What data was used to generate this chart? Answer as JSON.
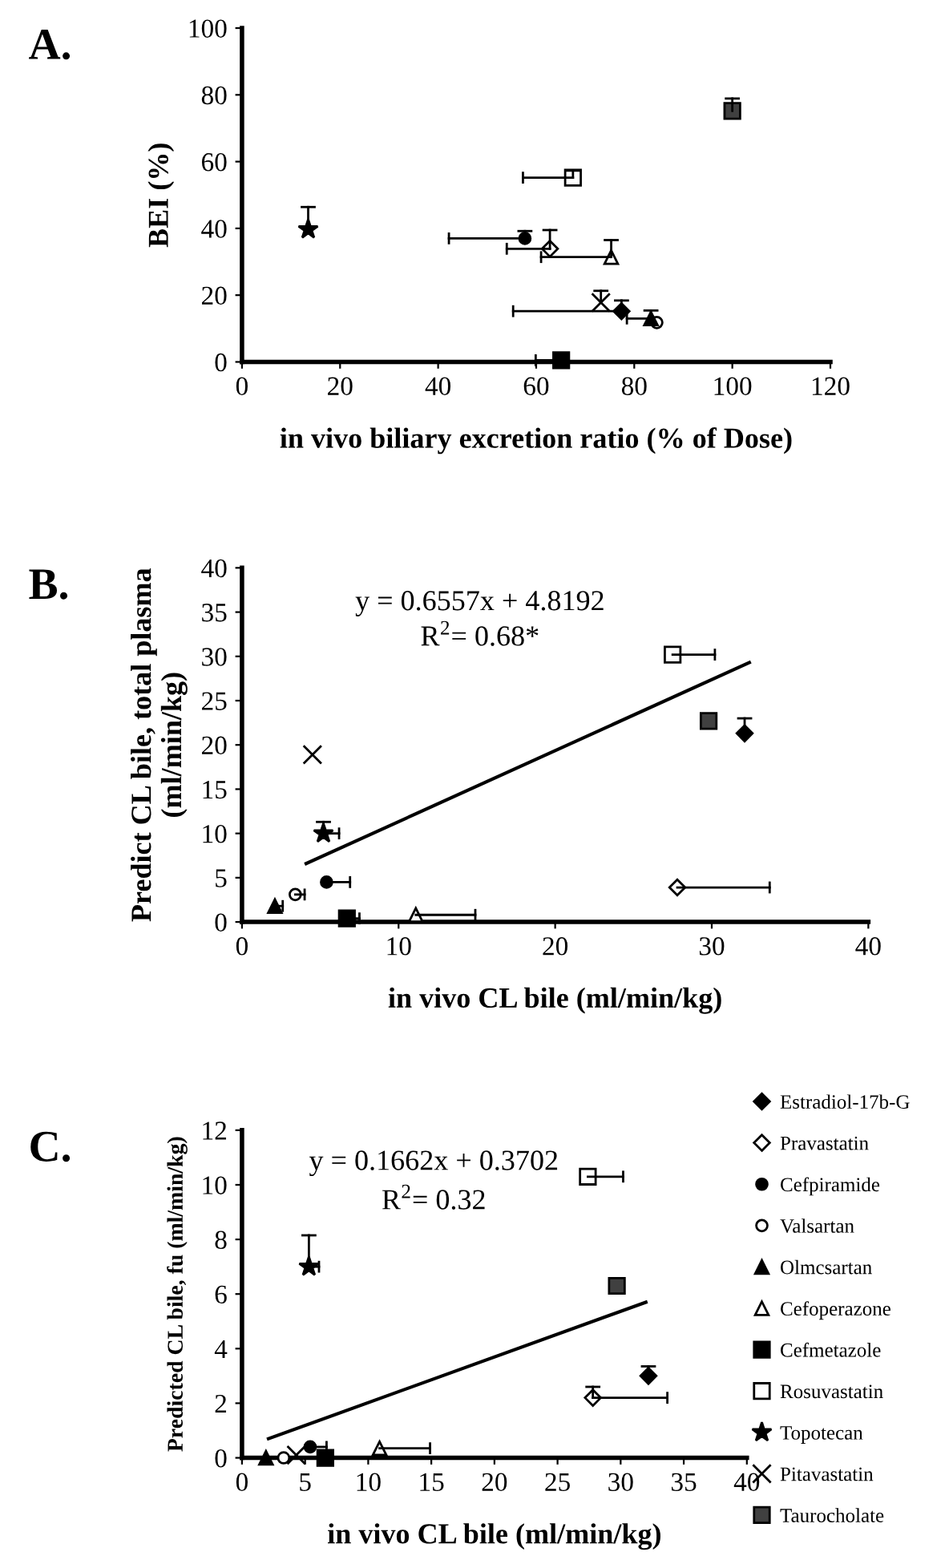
{
  "chart_data": [
    {
      "type": "scatter",
      "title": "A.",
      "xlabel": "in vivo biliary excretion ratio (% of Dose)",
      "ylabel": "BEI (%)",
      "xlim": [
        0,
        120
      ],
      "xticks": [
        0,
        20,
        40,
        60,
        80,
        100,
        120
      ],
      "ylim": [
        0,
        100
      ],
      "yticks": [
        0,
        20,
        40,
        60,
        80,
        100
      ],
      "grid": false,
      "legend": false,
      "series": [
        {
          "color": "#000000",
          "marker": "diamond",
          "x": [
            77.4
          ],
          "values": [
            15.2
          ],
          "xerrors": [
            [
              55.3,
              77.4
            ]
          ],
          "errors": [
            [
              15.2,
              18.4
            ]
          ]
        },
        {
          "color": "#ffffff",
          "marker": "diamond",
          "x": [
            62.8
          ],
          "values": [
            33.9
          ],
          "xerrors": [
            [
              54,
              62.8
            ]
          ],
          "errors": [
            [
              33.9,
              39.5
            ]
          ]
        },
        {
          "color": "#000000",
          "marker": "circle",
          "x": [
            57.7
          ],
          "values": [
            37
          ],
          "xerrors": [
            [
              42.2,
              57.7
            ]
          ],
          "errors": [
            [
              37,
              39.2
            ]
          ]
        },
        {
          "color": "#ffffff",
          "marker": "circle",
          "x": [
            84.6
          ],
          "values": [
            11.8
          ]
        },
        {
          "color": "#000000",
          "marker": "triangle",
          "x": [
            83.4
          ],
          "values": [
            13
          ],
          "xerrors": [
            [
              78.5,
              83.4
            ]
          ],
          "errors": [
            [
              13,
              15.4
            ]
          ]
        },
        {
          "color": "#ffffff",
          "marker": "triangle",
          "x": [
            75.3
          ],
          "values": [
            31.4
          ],
          "xerrors": [
            [
              61,
              75.3
            ]
          ],
          "errors": [
            [
              31.4,
              36.5
            ]
          ]
        },
        {
          "color": "#000000",
          "marker": "square",
          "x": [
            65.1
          ],
          "values": [
            0.5
          ],
          "xerrors": [
            [
              59.9,
              65.1
            ]
          ]
        },
        {
          "color": "#ffffff",
          "marker": "square",
          "x": [
            67.5
          ],
          "values": [
            55.2
          ],
          "xerrors": [
            [
              57.3,
              67.5
            ]
          ],
          "errors": [
            [
              55.2,
              57.3
            ]
          ]
        },
        {
          "color": "#000000",
          "marker": "star",
          "x": [
            13.5
          ],
          "values": [
            39.7
          ],
          "errors": [
            [
              39.7,
              46.4
            ]
          ]
        },
        {
          "color": "#000000",
          "marker": "cross",
          "x": [
            73.2
          ],
          "values": [
            17.8
          ],
          "errors": [
            [
              17.8,
              21.3
            ]
          ]
        },
        {
          "color": "#404040",
          "marker": "square",
          "x": [
            100
          ],
          "values": [
            75.2
          ],
          "errors": [
            [
              75.2,
              78.9
            ]
          ]
        }
      ]
    },
    {
      "type": "scatter",
      "title": "B.",
      "xlabel": "in vivo CL bile (ml/min/kg)",
      "ylabel": "Predict CL bile, total plasma\n(ml/min/kg)",
      "xlim": [
        0,
        40
      ],
      "xticks": [
        0,
        10,
        20,
        30,
        40
      ],
      "ylim": [
        0,
        40
      ],
      "yticks": [
        0,
        5,
        10,
        15,
        20,
        25,
        30,
        35,
        40
      ],
      "grid": false,
      "legend": false,
      "annotations": [
        "y = 0.6557x + 4.8192",
        "R$^{2}$= 0.68*"
      ],
      "series": [
        {
          "color": "#000000",
          "marker": "diamond",
          "x": [
            32.1
          ],
          "values": [
            21.3
          ],
          "errors": [
            [
              21.3,
              23
            ]
          ]
        },
        {
          "color": "#ffffff",
          "marker": "diamond",
          "x": [
            27.8
          ],
          "values": [
            3.9
          ],
          "xerrors": [
            [
              27.8,
              33.7
            ]
          ]
        },
        {
          "color": "#000000",
          "marker": "circle",
          "x": [
            5.4
          ],
          "values": [
            4.5
          ],
          "xerrors": [
            [
              5.4,
              6.9
            ]
          ]
        },
        {
          "color": "#ffffff",
          "marker": "circle",
          "x": [
            3.4
          ],
          "values": [
            3.1
          ],
          "xerrors": [
            [
              3.4,
              4.0
            ]
          ]
        },
        {
          "color": "#000000",
          "marker": "triangle",
          "x": [
            2.1
          ],
          "values": [
            1.8
          ],
          "xerrors": [
            [
              2.1,
              2.6
            ]
          ]
        },
        {
          "color": "#ffffff",
          "marker": "triangle",
          "x": [
            11.1
          ],
          "values": [
            0.8
          ],
          "xerrors": [
            [
              11.1,
              14.9
            ]
          ]
        },
        {
          "color": "#000000",
          "marker": "square",
          "x": [
            6.7
          ],
          "values": [
            0.4
          ],
          "xerrors": [
            [
              6.7,
              7.5
            ]
          ]
        },
        {
          "color": "#ffffff",
          "marker": "square",
          "x": [
            27.5
          ],
          "values": [
            30.2
          ],
          "xerrors": [
            [
              27.5,
              30.2
            ]
          ]
        },
        {
          "color": "#000000",
          "marker": "star",
          "x": [
            5.2
          ],
          "values": [
            10
          ],
          "xerrors": [
            [
              5.2,
              6.2
            ]
          ],
          "errors": [
            [
              10,
              11.3
            ]
          ]
        },
        {
          "color": "#000000",
          "marker": "cross",
          "x": [
            4.5
          ],
          "values": [
            18.9
          ]
        },
        {
          "color": "#404040",
          "marker": "square",
          "x": [
            29.8
          ],
          "values": [
            22.7
          ]
        },
        {
          "type": "line",
          "color": "#000000",
          "marker": "none",
          "x": [
            4.1,
            32.4
          ],
          "values": [
            6.6,
            29.3
          ]
        }
      ]
    },
    {
      "type": "scatter",
      "title": "C.",
      "xlabel": "in vivo CL bile (ml/min/kg)",
      "ylabel": "Predicted CL bile, fu (ml/min/kg)",
      "xlim": [
        0,
        40
      ],
      "xticks": [
        0,
        5,
        10,
        15,
        20,
        25,
        30,
        35,
        40
      ],
      "ylim": [
        0,
        12
      ],
      "yticks": [
        0,
        2,
        4,
        6,
        8,
        10,
        12
      ],
      "grid": false,
      "legend": "right",
      "annotations": [
        "y = 0.1662x + 0.3702",
        "R$^{2}$= 0.32"
      ],
      "series": [
        {
          "name": "Estradiol-17b-G",
          "color": "#000000",
          "marker": "diamond",
          "x": [
            32.2
          ],
          "values": [
            3.0
          ],
          "errors": [
            [
              3.0,
              3.35
            ]
          ]
        },
        {
          "name": "Pravastatin",
          "color": "#ffffff",
          "marker": "diamond",
          "x": [
            27.8
          ],
          "values": [
            2.2
          ],
          "xerrors": [
            [
              27.8,
              33.7
            ]
          ],
          "errors": [
            [
              2.2,
              2.6
            ]
          ]
        },
        {
          "name": "Cefpiramide",
          "color": "#000000",
          "marker": "circle",
          "x": [
            5.4
          ],
          "values": [
            0.4
          ],
          "xerrors": [
            [
              5.4,
              6.7
            ]
          ]
        },
        {
          "name": "Valsartan",
          "color": "#ffffff",
          "marker": "circle",
          "x": [
            3.3
          ],
          "values": [
            0
          ]
        },
        {
          "name": "Olmcsartan",
          "color": "#000000",
          "marker": "triangle",
          "x": [
            1.9
          ],
          "values": [
            0
          ]
        },
        {
          "name": "Cefoperazone",
          "color": "#ffffff",
          "marker": "triangle",
          "x": [
            10.9
          ],
          "values": [
            0.35
          ],
          "xerrors": [
            [
              10.9,
              14.9
            ]
          ]
        },
        {
          "name": "Cefmetazole",
          "color": "#000000",
          "marker": "square",
          "x": [
            6.6
          ],
          "values": [
            0
          ]
        },
        {
          "name": "Rosuvastatin",
          "color": "#ffffff",
          "marker": "square",
          "x": [
            27.4
          ],
          "values": [
            10.3
          ],
          "xerrors": [
            [
              27.4,
              30.2
            ]
          ]
        },
        {
          "name": "Topotecan",
          "color": "#000000",
          "marker": "star",
          "x": [
            5.3
          ],
          "values": [
            7.0
          ],
          "xerrors": [
            [
              5.3,
              6.1
            ]
          ],
          "errors": [
            [
              7.0,
              8.15
            ]
          ]
        },
        {
          "name": "Pitavastatin",
          "color": "#000000",
          "marker": "cross",
          "x": [
            4.3
          ],
          "values": [
            0.1
          ]
        },
        {
          "name": "Taurocholate",
          "color": "#404040",
          "marker": "square",
          "x": [
            29.7
          ],
          "values": [
            6.3
          ]
        },
        {
          "type": "line",
          "color": "#000000",
          "marker": "none",
          "x": [
            2.1,
            32.0
          ],
          "values": [
            0.7,
            5.7
          ]
        }
      ]
    }
  ]
}
